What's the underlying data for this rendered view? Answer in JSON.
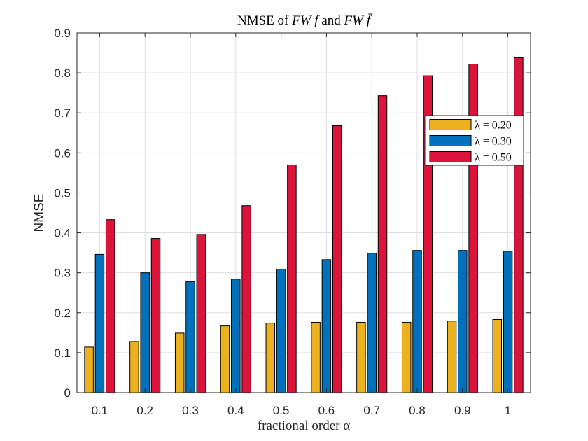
{
  "chart_data": {
    "type": "bar",
    "title": "NMSE of FWf and FWf̄",
    "title_parts": {
      "prefix": "NMSE of ",
      "term1": "FW f",
      "middle": " and ",
      "term2": "FW f̄"
    },
    "xlabel": "fractional order α",
    "ylabel": "NMSE",
    "categories": [
      "0.1",
      "0.2",
      "0.3",
      "0.4",
      "0.5",
      "0.6",
      "0.7",
      "0.8",
      "0.9",
      "1"
    ],
    "ylim": [
      0,
      0.9
    ],
    "yticks": [
      "0",
      "0.1",
      "0.2",
      "0.3",
      "0.4",
      "0.5",
      "0.6",
      "0.7",
      "0.8",
      "0.9"
    ],
    "grid": true,
    "legend_position": "top-right",
    "series": [
      {
        "name": "λ = 0.20",
        "color": "#EDB120",
        "values": [
          0.114,
          0.128,
          0.149,
          0.167,
          0.174,
          0.176,
          0.176,
          0.176,
          0.179,
          0.183
        ]
      },
      {
        "name": "λ = 0.30",
        "color": "#0072BD",
        "values": [
          0.346,
          0.3,
          0.278,
          0.284,
          0.309,
          0.333,
          0.349,
          0.356,
          0.356,
          0.354
        ]
      },
      {
        "name": "λ = 0.50",
        "color": "#DC143C",
        "values": [
          0.433,
          0.386,
          0.396,
          0.468,
          0.57,
          0.668,
          0.743,
          0.793,
          0.822,
          0.838
        ]
      }
    ]
  }
}
